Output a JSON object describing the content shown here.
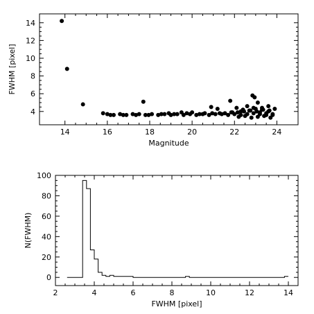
{
  "chart_data": [
    {
      "type": "scatter",
      "xlabel": "Magnitude",
      "ylabel": "FWHM [pixel]",
      "xlim": [
        12.8,
        25.0
      ],
      "ylim": [
        2.5,
        15.0
      ],
      "xticks": [
        14,
        16,
        18,
        20,
        22,
        24
      ],
      "yticks": [
        4,
        6,
        8,
        10,
        12,
        14
      ],
      "x": [
        13.85,
        14.1,
        14.85,
        17.7,
        21.8,
        22.1,
        22.85,
        22.95,
        23.1,
        23.3,
        22.6,
        21.2,
        20.9,
        23.6,
        15.8,
        16.0,
        16.3,
        16.6,
        16.9,
        17.2,
        17.5,
        17.8,
        18.1,
        18.4,
        18.7,
        19.0,
        19.3,
        19.6,
        19.9,
        20.2,
        20.5,
        20.8,
        21.1,
        21.4,
        21.7,
        22.0,
        22.3,
        22.6,
        22.9,
        23.2,
        23.5,
        23.8,
        16.15,
        16.75,
        17.35,
        17.95,
        18.55,
        19.15,
        19.75,
        20.35,
        20.95,
        21.55,
        21.85,
        22.15,
        22.45,
        22.75,
        23.05,
        23.35,
        23.65,
        23.9,
        22.2,
        22.5,
        22.8,
        23.1,
        23.4,
        23.7,
        22.4,
        22.7,
        23.0,
        23.3,
        23.6,
        21.9,
        22.3,
        22.9,
        23.2,
        23.5,
        23.8,
        18.9,
        19.5,
        20.0,
        20.6,
        21.3
      ],
      "y": [
        14.2,
        8.8,
        4.8,
        5.1,
        5.2,
        4.4,
        5.8,
        5.6,
        5.0,
        4.4,
        4.6,
        4.3,
        4.5,
        4.6,
        3.8,
        3.7,
        3.6,
        3.7,
        3.6,
        3.7,
        3.7,
        3.6,
        3.7,
        3.6,
        3.7,
        3.6,
        3.7,
        3.6,
        3.7,
        3.6,
        3.7,
        3.6,
        3.7,
        3.7,
        3.6,
        3.7,
        3.6,
        3.7,
        3.8,
        3.7,
        3.6,
        3.7,
        3.6,
        3.6,
        3.6,
        3.6,
        3.7,
        3.7,
        3.8,
        3.7,
        3.8,
        3.8,
        3.9,
        3.9,
        4.0,
        4.1,
        4.0,
        4.2,
        4.1,
        4.3,
        3.4,
        3.5,
        3.3,
        3.4,
        3.5,
        3.3,
        4.2,
        4.1,
        4.3,
        4.2,
        4.0,
        3.9,
        4.0,
        4.4,
        3.9,
        3.8,
        3.6,
        3.8,
        3.9,
        3.9,
        3.8,
        3.8
      ]
    },
    {
      "type": "histogram",
      "xlabel": "FWHM [pixel]",
      "ylabel": "N(FWHM)",
      "xlim": [
        2.0,
        14.5
      ],
      "ylim": [
        -8,
        100
      ],
      "xticks": [
        2,
        4,
        6,
        8,
        10,
        12,
        14
      ],
      "yticks": [
        0,
        20,
        40,
        60,
        80,
        100
      ],
      "bin_edges": [
        2.6,
        3.4,
        3.6,
        3.8,
        4.0,
        4.2,
        4.4,
        4.6,
        4.8,
        5.0,
        5.2,
        5.4,
        5.6,
        5.8,
        6.0,
        8.7,
        8.9,
        13.8,
        14.0
      ],
      "counts": [
        0,
        95,
        87,
        27,
        18,
        5,
        2,
        1,
        2,
        1,
        1,
        1,
        1,
        1,
        0,
        1,
        0,
        1
      ]
    }
  ]
}
